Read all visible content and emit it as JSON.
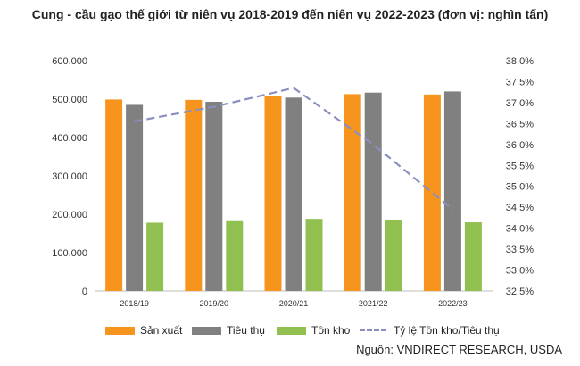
{
  "chart_data": {
    "type": "bar",
    "title": "Cung - cầu gạo thế giới từ niên vụ 2018-2019 đến niên vụ 2022-2023 (đơn vị: nghìn tấn)",
    "categories": [
      "2018/19",
      "2019/20",
      "2020/21",
      "2021/22",
      "2022/23"
    ],
    "series": [
      {
        "name": "Sản xuất",
        "kind": "bar",
        "color": "#f7941d",
        "values": [
          499000,
          498000,
          509000,
          513000,
          512000
        ]
      },
      {
        "name": "Tiêu thụ",
        "kind": "bar",
        "color": "#808080",
        "values": [
          485000,
          493000,
          504000,
          517000,
          520000
        ]
      },
      {
        "name": "Tồn kho",
        "kind": "bar",
        "color": "#92c050",
        "values": [
          178000,
          182000,
          188000,
          185000,
          179000
        ]
      },
      {
        "name": "Tỷ lệ Tồn kho/Tiêu thụ",
        "kind": "line",
        "axis": "right",
        "color": "#8a8fbf",
        "values": [
          36.55,
          36.9,
          37.35,
          36.0,
          34.45
        ]
      }
    ],
    "y_left": {
      "min": 0,
      "max": 600000,
      "step": 100000,
      "tick_labels": [
        "0",
        "100.000",
        "200.000",
        "300.000",
        "400.000",
        "500.000",
        "600.000"
      ]
    },
    "y_right": {
      "min": 32.5,
      "max": 38.0,
      "step": 0.5,
      "tick_labels": [
        "32,5%",
        "33,0%",
        "33,5%",
        "34,0%",
        "34,5%",
        "35,0%",
        "35,5%",
        "36,0%",
        "36,5%",
        "37,0%",
        "37,5%",
        "38,0%"
      ]
    },
    "grid": false,
    "legend_position": "bottom"
  },
  "source": "Nguồn: VNDIRECT RESEARCH, USDA"
}
